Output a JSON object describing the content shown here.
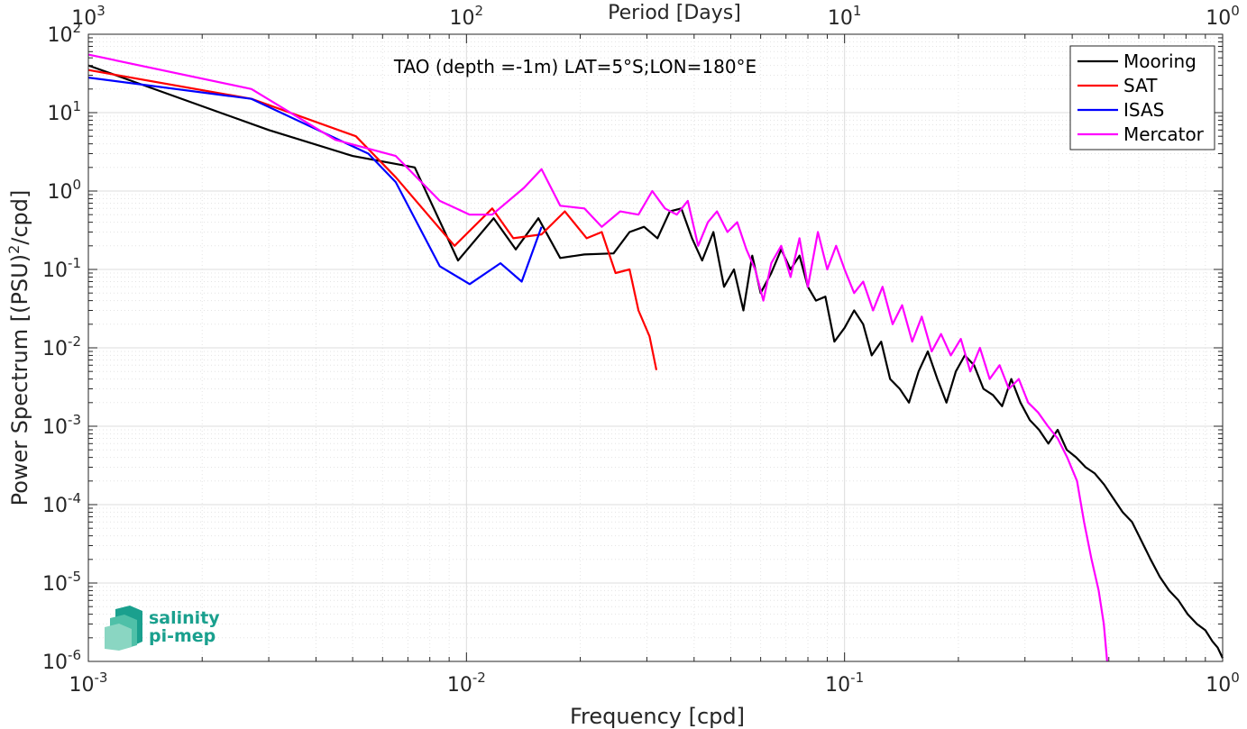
{
  "chart_data": {
    "type": "line",
    "title": "TAO (depth =-1m) LAT=5°S;LON=180°E",
    "xlabel": "Frequency [cpd]",
    "ylabel": "Power Spectrum [(PSU)²/cpd]",
    "ylabel_parts": {
      "before": "Power Spectrum [(PSU)",
      "sup": "2",
      "after": "/cpd]"
    },
    "top_xlabel": "Period [Days]",
    "xscale": "log",
    "yscale": "log",
    "xlim": [
      0.001,
      1
    ],
    "ylim": [
      1e-06,
      100
    ],
    "grid": true,
    "legend_position": "top-right",
    "x_ticks": [
      {
        "value": 0.001,
        "base": "10",
        "exp": "-3"
      },
      {
        "value": 0.01,
        "base": "10",
        "exp": "-2"
      },
      {
        "value": 0.1,
        "base": "10",
        "exp": "-1"
      },
      {
        "value": 1,
        "base": "10",
        "exp": "0"
      }
    ],
    "top_ticks": [
      {
        "value": 0.001,
        "base": "10",
        "exp": "3"
      },
      {
        "value": 0.01,
        "base": "10",
        "exp": "2"
      },
      {
        "value": 0.1,
        "base": "10",
        "exp": "1"
      },
      {
        "value": 1,
        "base": "10",
        "exp": "0"
      }
    ],
    "y_ticks": [
      {
        "value": 100,
        "base": "10",
        "exp": "2"
      },
      {
        "value": 10,
        "base": "10",
        "exp": "1"
      },
      {
        "value": 1,
        "base": "10",
        "exp": "0"
      },
      {
        "value": 0.1,
        "base": "10",
        "exp": "-1"
      },
      {
        "value": 0.01,
        "base": "10",
        "exp": "-2"
      },
      {
        "value": 0.001,
        "base": "10",
        "exp": "-3"
      },
      {
        "value": 0.0001,
        "base": "10",
        "exp": "-4"
      },
      {
        "value": 1e-05,
        "base": "10",
        "exp": "-5"
      },
      {
        "value": 1e-06,
        "base": "10",
        "exp": "-6"
      }
    ],
    "series": [
      {
        "name": "Mooring",
        "color": "#000000",
        "x": [
          0.001,
          0.003,
          0.005,
          0.0073,
          0.0095,
          0.0118,
          0.0135,
          0.0155,
          0.0177,
          0.0205,
          0.0245,
          0.027,
          0.0295,
          0.032,
          0.0345,
          0.037,
          0.0395,
          0.042,
          0.045,
          0.048,
          0.051,
          0.054,
          0.057,
          0.06,
          0.064,
          0.068,
          0.072,
          0.076,
          0.08,
          0.084,
          0.089,
          0.094,
          0.1,
          0.106,
          0.112,
          0.118,
          0.125,
          0.132,
          0.14,
          0.148,
          0.157,
          0.166,
          0.176,
          0.186,
          0.197,
          0.208,
          0.22,
          0.233,
          0.247,
          0.261,
          0.276,
          0.292,
          0.309,
          0.327,
          0.346,
          0.366,
          0.387,
          0.41,
          0.434,
          0.459,
          0.486,
          0.514,
          0.544,
          0.576,
          0.609,
          0.645,
          0.682,
          0.722,
          0.764,
          0.808,
          0.855,
          0.9,
          0.94,
          0.97,
          1.0
        ],
        "y": [
          40,
          6,
          2.8,
          2.0,
          0.13,
          0.45,
          0.18,
          0.45,
          0.14,
          0.155,
          0.16,
          0.3,
          0.35,
          0.25,
          0.55,
          0.6,
          0.25,
          0.13,
          0.3,
          0.06,
          0.1,
          0.03,
          0.15,
          0.05,
          0.09,
          0.18,
          0.1,
          0.15,
          0.06,
          0.04,
          0.045,
          0.012,
          0.018,
          0.03,
          0.02,
          0.008,
          0.012,
          0.004,
          0.003,
          0.002,
          0.005,
          0.009,
          0.004,
          0.002,
          0.005,
          0.008,
          0.006,
          0.003,
          0.0025,
          0.0018,
          0.004,
          0.002,
          0.0012,
          0.0009,
          0.0006,
          0.0009,
          0.0005,
          0.0004,
          0.0003,
          0.00025,
          0.00018,
          0.00012,
          8e-05,
          6e-05,
          3.5e-05,
          2e-05,
          1.2e-05,
          8e-06,
          6e-06,
          4e-06,
          3e-06,
          2.5e-06,
          1.8e-06,
          1.5e-06,
          1.1e-06
        ]
      },
      {
        "name": "SAT",
        "color": "#ff0000",
        "x": [
          0.001,
          0.0027,
          0.0051,
          0.0065,
          0.0093,
          0.0117,
          0.0133,
          0.0158,
          0.0182,
          0.0208,
          0.0228,
          0.0248,
          0.027,
          0.0285,
          0.0305,
          0.0318
        ],
        "y": [
          35,
          15,
          5,
          1.5,
          0.2,
          0.6,
          0.25,
          0.28,
          0.55,
          0.25,
          0.3,
          0.09,
          0.1,
          0.03,
          0.014,
          0.0052
        ]
      },
      {
        "name": "ISAS",
        "color": "#0000ff",
        "x": [
          0.001,
          0.0027,
          0.0055,
          0.0065,
          0.0085,
          0.0102,
          0.0123,
          0.014,
          0.0158
        ],
        "y": [
          28,
          15,
          3.0,
          1.3,
          0.11,
          0.065,
          0.12,
          0.07,
          0.35
        ]
      },
      {
        "name": "Mercator",
        "color": "#ff00ff",
        "x": [
          0.001,
          0.0027,
          0.0045,
          0.0065,
          0.0085,
          0.0102,
          0.0117,
          0.0142,
          0.0158,
          0.0177,
          0.0205,
          0.0228,
          0.0255,
          0.0285,
          0.031,
          0.0335,
          0.036,
          0.0385,
          0.041,
          0.0435,
          0.046,
          0.049,
          0.052,
          0.055,
          0.058,
          0.061,
          0.064,
          0.068,
          0.072,
          0.076,
          0.08,
          0.085,
          0.09,
          0.095,
          0.1,
          0.106,
          0.112,
          0.119,
          0.126,
          0.134,
          0.142,
          0.151,
          0.16,
          0.17,
          0.18,
          0.191,
          0.203,
          0.215,
          0.228,
          0.242,
          0.257,
          0.272,
          0.289,
          0.306,
          0.325,
          0.345,
          0.366,
          0.388,
          0.412,
          0.43,
          0.45,
          0.47,
          0.485,
          0.495
        ],
        "y": [
          55,
          20,
          4.5,
          2.8,
          0.75,
          0.5,
          0.5,
          1.1,
          1.9,
          0.65,
          0.6,
          0.35,
          0.55,
          0.5,
          1.0,
          0.6,
          0.5,
          0.75,
          0.2,
          0.4,
          0.55,
          0.3,
          0.4,
          0.18,
          0.1,
          0.04,
          0.12,
          0.2,
          0.08,
          0.25,
          0.06,
          0.3,
          0.1,
          0.2,
          0.1,
          0.05,
          0.07,
          0.03,
          0.06,
          0.02,
          0.035,
          0.012,
          0.025,
          0.009,
          0.015,
          0.008,
          0.013,
          0.005,
          0.01,
          0.004,
          0.006,
          0.003,
          0.004,
          0.002,
          0.0015,
          0.001,
          0.0007,
          0.0004,
          0.0002,
          6e-05,
          2e-05,
          8e-06,
          3e-06,
          1e-06
        ]
      }
    ]
  },
  "logo": {
    "line1": "salinity",
    "line2": "pi-mep",
    "colors": [
      "#1aa08e",
      "#4fc0a8",
      "#8ad6c2"
    ]
  }
}
